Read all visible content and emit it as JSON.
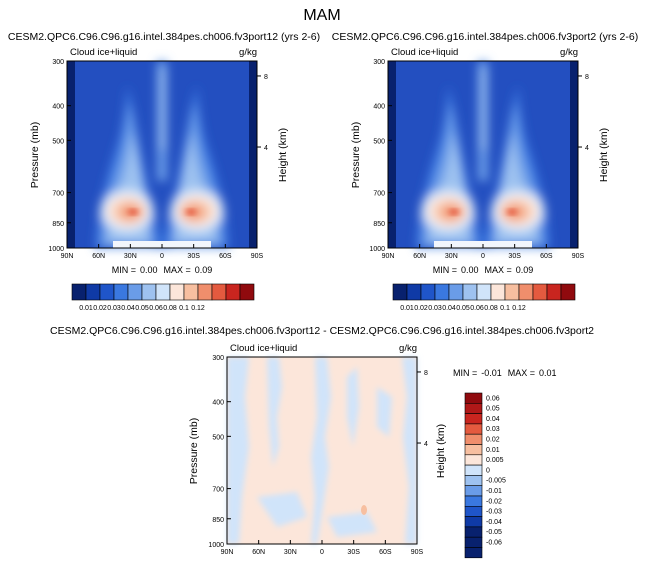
{
  "page": {
    "title": "MAM"
  },
  "palette": {
    "sequential": [
      "#08216e",
      "#0f3aa6",
      "#1f55c9",
      "#3a78e0",
      "#6a9ce8",
      "#9ec2f0",
      "#d0e4fa",
      "#fce6da",
      "#f7bfa0",
      "#f08e6c",
      "#e45a3f",
      "#c9251f",
      "#900a0e"
    ],
    "diverging": [
      "#08216e",
      "#0f3aa6",
      "#1f55c9",
      "#3a78e0",
      "#6a9ce8",
      "#9ec2f0",
      "#d0e4fa",
      "#fce6da",
      "#f7bfa0",
      "#f08e6c",
      "#e45a3f",
      "#c9251f",
      "#b01818",
      "#900a0e"
    ]
  },
  "chart_data": [
    {
      "type": "heatmap",
      "title": "CESM2.QPC6.C96.C96.g16.intel.384pes.ch006.fv3port12 (yrs 2-6)",
      "left_label": "Cloud ice+liquid",
      "units": "g/kg",
      "ylabel": "Pressure (mb)",
      "y2label": "Height (km)",
      "x_ticks": [
        "90N",
        "60N",
        "30N",
        "0",
        "30S",
        "60S",
        "90S"
      ],
      "y_ticks": [
        "300",
        "400",
        "500",
        "700",
        "850",
        "1000"
      ],
      "y2_ticks": [
        "8",
        "4"
      ],
      "stats": {
        "min_label": "MIN =",
        "min": "0.00",
        "max_label": "MAX =",
        "max": "0.09"
      },
      "colorbar_labels": [
        "0.01",
        "0.02",
        "0.03",
        "0.04",
        "0.05",
        "0.06",
        "0.08",
        "0.1",
        "0.12"
      ]
    },
    {
      "type": "heatmap",
      "title": "CESM2.QPC6.C96.C96.g16.intel.384pes.ch006.fv3port2 (yrs 2-6)",
      "left_label": "Cloud ice+liquid",
      "units": "g/kg",
      "ylabel": "Pressure (mb)",
      "y2label": "Height (km)",
      "x_ticks": [
        "90N",
        "60N",
        "30N",
        "0",
        "30S",
        "60S",
        "90S"
      ],
      "y_ticks": [
        "300",
        "400",
        "500",
        "700",
        "850",
        "1000"
      ],
      "y2_ticks": [
        "8",
        "4"
      ],
      "stats": {
        "min_label": "MIN =",
        "min": "0.00",
        "max_label": "MAX =",
        "max": "0.09"
      },
      "colorbar_labels": [
        "0.01",
        "0.02",
        "0.03",
        "0.04",
        "0.05",
        "0.06",
        "0.08",
        "0.1",
        "0.12"
      ]
    },
    {
      "type": "heatmap",
      "title": "CESM2.QPC6.C96.C96.g16.intel.384pes.ch006.fv3port12 - CESM2.QPC6.C96.C96.g16.intel.384pes.ch006.fv3port2",
      "left_label": "Cloud ice+liquid",
      "units": "g/kg",
      "ylabel": "Pressure (mb)",
      "y2label": "Height (km)",
      "x_ticks": [
        "90N",
        "60N",
        "30N",
        "0",
        "30S",
        "60S",
        "90S"
      ],
      "y_ticks": [
        "300",
        "400",
        "500",
        "700",
        "850",
        "1000"
      ],
      "y2_ticks": [
        "8",
        "4"
      ],
      "stats": {
        "min_label": "MIN =",
        "min": "-0.01",
        "max_label": "MAX =",
        "max": "0.01"
      },
      "colorbar_labels": [
        "0.06",
        "0.05",
        "0.04",
        "0.03",
        "0.02",
        "0.01",
        "0.005",
        "0",
        "-0.005",
        "-0.01",
        "-0.02",
        "-0.03",
        "-0.04",
        "-0.05",
        "-0.06"
      ]
    }
  ]
}
